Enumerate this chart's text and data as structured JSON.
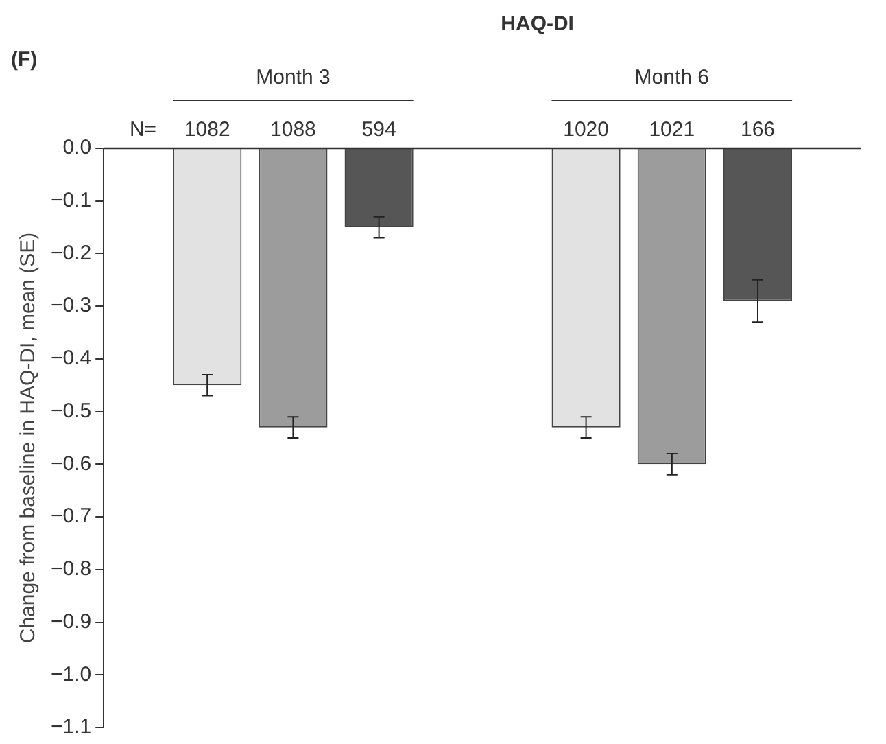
{
  "chart_data": {
    "type": "bar",
    "title": "HAQ-DI",
    "ylabel": "Change from baseline in HAQ-DI, mean (SE)",
    "categories": [
      "Month 3",
      "Month 6"
    ],
    "series": [
      {
        "color": "#e2e2e2",
        "values": [
          -0.45,
          -0.53
        ],
        "errors": [
          0.02,
          0.02
        ]
      },
      {
        "color": "#9c9c9c",
        "values": [
          -0.53,
          -0.6
        ],
        "errors": [
          0.02,
          0.02
        ]
      },
      {
        "color": "#565656",
        "values": [
          -0.15,
          -0.29
        ],
        "errors": [
          0.02,
          0.04
        ]
      }
    ],
    "ylim": [
      -1.1,
      0.0
    ],
    "yticks": [
      {
        "value": 0,
        "label": "0.0"
      },
      {
        "value": -0.1,
        "label": "−0.1"
      },
      {
        "value": -0.2,
        "label": "−0.2"
      },
      {
        "value": -0.3,
        "label": "−0.3"
      },
      {
        "value": -0.4,
        "label": "−0.4"
      },
      {
        "value": -0.5,
        "label": "−0.5"
      },
      {
        "value": -0.6,
        "label": "−0.6"
      },
      {
        "value": -0.7,
        "label": "−0.7"
      },
      {
        "value": -0.8,
        "label": "−0.8"
      },
      {
        "value": -0.9,
        "label": "−0.9"
      },
      {
        "value": -1.0,
        "label": "−1.0"
      },
      {
        "value": -1.1,
        "label": "−1.1"
      }
    ],
    "annotations": [
      "(F)",
      "N=",
      "1082",
      "1088",
      "594",
      "1020",
      "1021",
      "166"
    ],
    "grid": false,
    "legend": false
  }
}
